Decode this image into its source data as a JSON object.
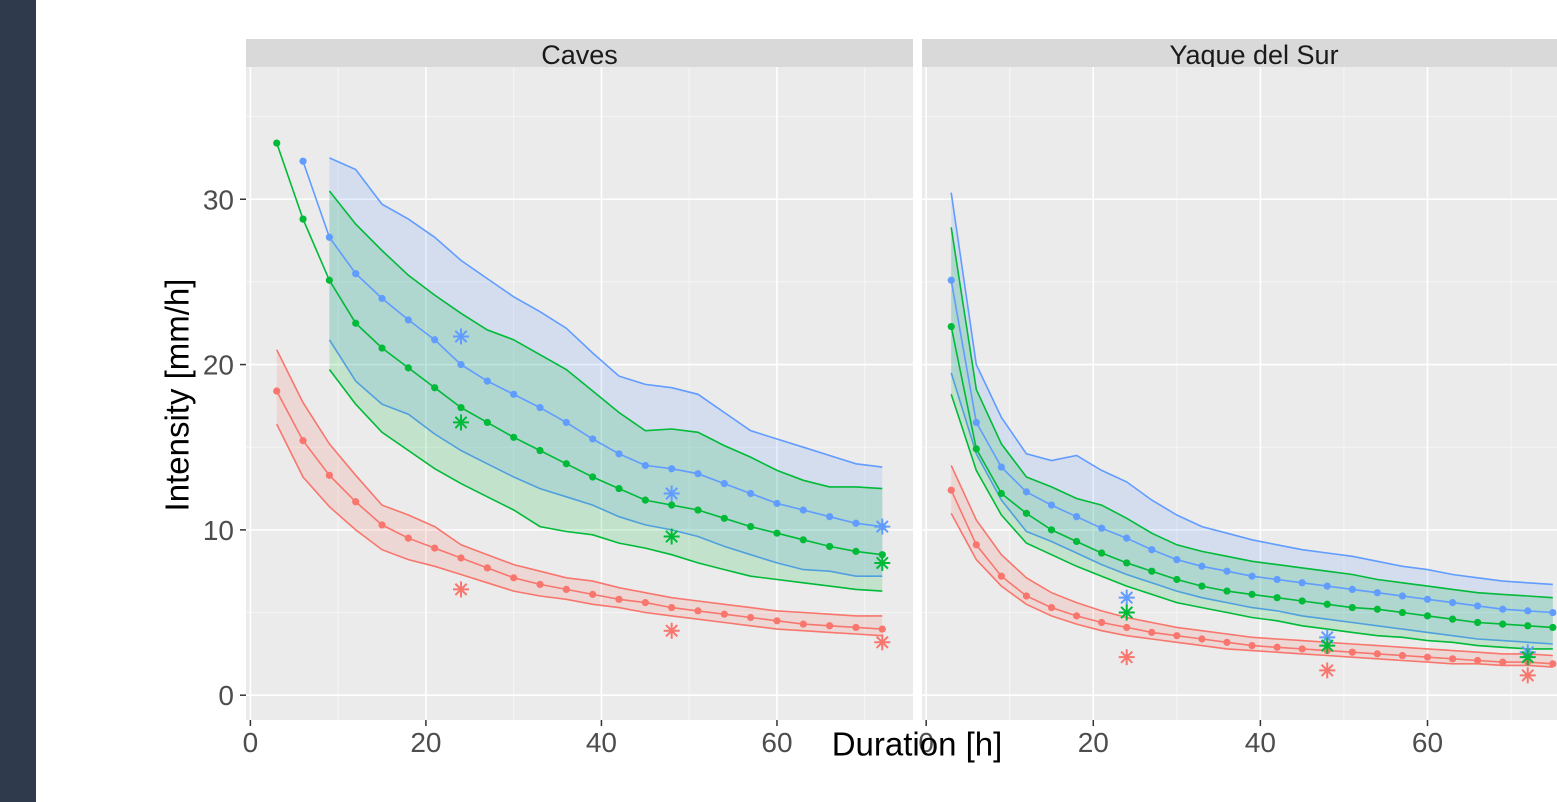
{
  "chart_data": {
    "type": "line",
    "xlabel": "Duration [h]",
    "ylabel": "Intensity [mm/h]",
    "xlim": [
      -0.5,
      75.5
    ],
    "ylim": [
      -1.5,
      38
    ],
    "xticks": [
      0,
      20,
      40,
      60
    ],
    "yticks": [
      0,
      10,
      20,
      30
    ],
    "grid": true,
    "legend": "none",
    "colors": {
      "red": "#f8766d",
      "green": "#00ba38",
      "blue": "#619cff",
      "panel_bg": "#ebebeb",
      "strip_bg": "#d9d9d9",
      "grid": "#ffffff"
    },
    "panels": [
      {
        "strip": "Caves",
        "bands": [
          {
            "color": "#619cff",
            "x": [
              9,
              12,
              15,
              18,
              21,
              24,
              27,
              30,
              33,
              36,
              39,
              42,
              45,
              48,
              51,
              54,
              57,
              60,
              63,
              66,
              69,
              72
            ],
            "upper": [
              32.5,
              31.8,
              29.7,
              28.8,
              27.7,
              26.3,
              25.2,
              24.1,
              23.2,
              22.2,
              20.7,
              19.3,
              18.8,
              18.6,
              18.2,
              17.1,
              16.0,
              15.5,
              15.0,
              14.5,
              14.0,
              13.8
            ],
            "lower": [
              21.5,
              19.0,
              17.6,
              17.0,
              15.8,
              14.8,
              14.0,
              13.2,
              12.5,
              12.0,
              11.5,
              10.8,
              10.3,
              10.0,
              9.6,
              9.0,
              8.5,
              8.0,
              7.6,
              7.5,
              7.2,
              7.2
            ]
          },
          {
            "color": "#00ba38",
            "x": [
              9,
              12,
              15,
              18,
              21,
              24,
              27,
              30,
              33,
              36,
              39,
              42,
              45,
              48,
              51,
              54,
              57,
              60,
              63,
              66,
              69,
              72
            ],
            "upper": [
              30.5,
              28.5,
              26.9,
              25.4,
              24.2,
              23.1,
              22.1,
              21.5,
              20.6,
              19.7,
              18.4,
              17.1,
              16.0,
              16.1,
              15.9,
              15.1,
              14.4,
              13.6,
              13.0,
              12.6,
              12.6,
              12.5
            ],
            "lower": [
              19.7,
              17.6,
              15.9,
              14.8,
              13.7,
              12.8,
              12.0,
              11.2,
              10.2,
              9.9,
              9.7,
              9.2,
              8.9,
              8.5,
              8.0,
              7.6,
              7.2,
              7.0,
              6.8,
              6.6,
              6.4,
              6.3
            ]
          },
          {
            "color": "#f8766d",
            "x": [
              3,
              6,
              9,
              12,
              15,
              18,
              21,
              24,
              27,
              30,
              33,
              36,
              39,
              42,
              45,
              48,
              51,
              54,
              57,
              60,
              63,
              66,
              69,
              72
            ],
            "upper": [
              20.9,
              17.7,
              15.2,
              13.3,
              11.5,
              10.9,
              10.2,
              9.1,
              8.5,
              7.9,
              7.5,
              7.1,
              6.9,
              6.5,
              6.2,
              5.9,
              5.7,
              5.5,
              5.3,
              5.1,
              5.0,
              4.9,
              4.8,
              4.8
            ],
            "lower": [
              16.4,
              13.2,
              11.4,
              10.0,
              8.8,
              8.2,
              7.8,
              7.3,
              6.8,
              6.3,
              6.0,
              5.8,
              5.5,
              5.3,
              5.0,
              4.8,
              4.6,
              4.4,
              4.2,
              4.0,
              3.9,
              3.8,
              3.7,
              3.6
            ]
          }
        ],
        "series": [
          {
            "color": "#619cff",
            "x": [
              6,
              9,
              12,
              15,
              18,
              21,
              24,
              27,
              30,
              33,
              36,
              39,
              42,
              45,
              48,
              51,
              54,
              57,
              60,
              63,
              66,
              69,
              72
            ],
            "y": [
              32.3,
              27.7,
              25.5,
              24.0,
              22.7,
              21.5,
              20.0,
              19.0,
              18.2,
              17.4,
              16.5,
              15.5,
              14.6,
              13.9,
              13.7,
              13.4,
              12.8,
              12.2,
              11.6,
              11.2,
              10.8,
              10.4,
              10.2
            ]
          },
          {
            "color": "#00ba38",
            "x": [
              3,
              6,
              9,
              12,
              15,
              18,
              21,
              24,
              27,
              30,
              33,
              36,
              39,
              42,
              45,
              48,
              51,
              54,
              57,
              60,
              63,
              66,
              69,
              72
            ],
            "y": [
              33.4,
              28.8,
              25.1,
              22.5,
              21.0,
              19.8,
              18.6,
              17.4,
              16.5,
              15.6,
              14.8,
              14.0,
              13.2,
              12.5,
              11.8,
              11.5,
              11.2,
              10.7,
              10.2,
              9.8,
              9.4,
              9.0,
              8.7,
              8.5
            ]
          },
          {
            "color": "#f8766d",
            "x": [
              3,
              6,
              9,
              12,
              15,
              18,
              21,
              24,
              27,
              30,
              33,
              36,
              39,
              42,
              45,
              48,
              51,
              54,
              57,
              60,
              63,
              66,
              69,
              72
            ],
            "y": [
              18.4,
              15.4,
              13.3,
              11.7,
              10.3,
              9.5,
              8.9,
              8.3,
              7.7,
              7.1,
              6.7,
              6.4,
              6.1,
              5.8,
              5.6,
              5.3,
              5.1,
              4.9,
              4.7,
              4.5,
              4.3,
              4.2,
              4.1,
              4.0
            ]
          }
        ],
        "stars": [
          {
            "color": "#619cff",
            "x": 24,
            "y": 21.7
          },
          {
            "color": "#619cff",
            "x": 48,
            "y": 12.2
          },
          {
            "color": "#619cff",
            "x": 72,
            "y": 10.2
          },
          {
            "color": "#00ba38",
            "x": 24,
            "y": 16.5
          },
          {
            "color": "#00ba38",
            "x": 48,
            "y": 9.6
          },
          {
            "color": "#00ba38",
            "x": 72,
            "y": 8.0
          },
          {
            "color": "#f8766d",
            "x": 24,
            "y": 6.4
          },
          {
            "color": "#f8766d",
            "x": 48,
            "y": 3.9
          },
          {
            "color": "#f8766d",
            "x": 72,
            "y": 3.2
          }
        ]
      },
      {
        "strip": "Yaque del Sur",
        "bands": [
          {
            "color": "#619cff",
            "x": [
              3,
              6,
              9,
              12,
              15,
              18,
              21,
              24,
              27,
              30,
              33,
              36,
              39,
              42,
              45,
              48,
              51,
              54,
              57,
              60,
              63,
              66,
              69,
              72,
              75
            ],
            "upper": [
              30.4,
              20.0,
              16.8,
              14.6,
              14.2,
              14.5,
              13.6,
              12.9,
              11.8,
              10.9,
              10.2,
              9.8,
              9.4,
              9.1,
              8.8,
              8.6,
              8.4,
              8.1,
              7.8,
              7.6,
              7.3,
              7.1,
              6.9,
              6.8,
              6.7
            ],
            "lower": [
              19.5,
              14.6,
              11.8,
              9.9,
              9.3,
              8.6,
              7.9,
              7.3,
              6.8,
              6.3,
              5.9,
              5.6,
              5.3,
              5.1,
              4.8,
              4.6,
              4.4,
              4.2,
              4.0,
              3.8,
              3.6,
              3.4,
              3.3,
              3.2,
              3.1
            ]
          },
          {
            "color": "#00ba38",
            "x": [
              3,
              6,
              9,
              12,
              15,
              18,
              21,
              24,
              27,
              30,
              33,
              36,
              39,
              42,
              45,
              48,
              51,
              54,
              57,
              60,
              63,
              66,
              69,
              72,
              75
            ],
            "upper": [
              28.3,
              18.5,
              15.2,
              13.2,
              12.6,
              11.9,
              11.5,
              10.7,
              9.8,
              9.1,
              8.7,
              8.4,
              8.1,
              7.9,
              7.7,
              7.5,
              7.3,
              7.0,
              6.8,
              6.6,
              6.4,
              6.2,
              6.1,
              6.0,
              5.9
            ],
            "lower": [
              18.2,
              13.6,
              10.9,
              9.2,
              8.5,
              7.8,
              7.2,
              6.6,
              6.1,
              5.6,
              5.3,
              5.0,
              4.7,
              4.5,
              4.2,
              4.0,
              3.8,
              3.6,
              3.5,
              3.3,
              3.2,
              3.0,
              2.9,
              2.8,
              2.8
            ]
          },
          {
            "color": "#f8766d",
            "x": [
              3,
              6,
              9,
              12,
              15,
              18,
              21,
              24,
              27,
              30,
              33,
              36,
              39,
              42,
              45,
              48,
              51,
              54,
              57,
              60,
              63,
              66,
              69,
              72,
              75
            ],
            "upper": [
              13.9,
              10.6,
              8.5,
              7.1,
              6.2,
              5.6,
              5.1,
              4.7,
              4.4,
              4.1,
              3.9,
              3.7,
              3.5,
              3.4,
              3.3,
              3.2,
              3.1,
              3.0,
              2.9,
              2.8,
              2.7,
              2.6,
              2.5,
              2.5,
              2.4
            ],
            "lower": [
              11.0,
              8.2,
              6.6,
              5.5,
              4.8,
              4.3,
              3.9,
              3.6,
              3.4,
              3.2,
              3.0,
              2.8,
              2.7,
              2.6,
              2.5,
              2.4,
              2.3,
              2.2,
              2.1,
              2.0,
              1.9,
              1.9,
              1.8,
              1.8,
              1.7
            ]
          }
        ],
        "series": [
          {
            "color": "#619cff",
            "x": [
              3,
              6,
              9,
              12,
              15,
              18,
              21,
              24,
              27,
              30,
              33,
              36,
              39,
              42,
              45,
              48,
              51,
              54,
              57,
              60,
              63,
              66,
              69,
              72,
              75
            ],
            "y": [
              25.1,
              16.5,
              13.8,
              12.3,
              11.5,
              10.8,
              10.1,
              9.5,
              8.8,
              8.2,
              7.8,
              7.5,
              7.2,
              7.0,
              6.8,
              6.6,
              6.4,
              6.2,
              6.0,
              5.8,
              5.6,
              5.4,
              5.2,
              5.1,
              5.0
            ]
          },
          {
            "color": "#00ba38",
            "x": [
              3,
              6,
              9,
              12,
              15,
              18,
              21,
              24,
              27,
              30,
              33,
              36,
              39,
              42,
              45,
              48,
              51,
              54,
              57,
              60,
              63,
              66,
              69,
              72,
              75
            ],
            "y": [
              22.3,
              14.9,
              12.2,
              11.0,
              10.0,
              9.3,
              8.6,
              8.0,
              7.5,
              7.0,
              6.6,
              6.3,
              6.1,
              5.9,
              5.7,
              5.5,
              5.3,
              5.2,
              5.0,
              4.8,
              4.6,
              4.4,
              4.3,
              4.2,
              4.1
            ]
          },
          {
            "color": "#f8766d",
            "x": [
              3,
              6,
              9,
              12,
              15,
              18,
              21,
              24,
              27,
              30,
              33,
              36,
              39,
              42,
              45,
              48,
              51,
              54,
              57,
              60,
              63,
              66,
              69,
              72,
              75
            ],
            "y": [
              12.4,
              9.1,
              7.2,
              6.0,
              5.3,
              4.8,
              4.4,
              4.1,
              3.8,
              3.6,
              3.4,
              3.2,
              3.0,
              2.9,
              2.8,
              2.7,
              2.6,
              2.5,
              2.4,
              2.3,
              2.2,
              2.1,
              2.0,
              2.0,
              1.9
            ]
          }
        ],
        "stars": [
          {
            "color": "#619cff",
            "x": 24,
            "y": 5.9
          },
          {
            "color": "#619cff",
            "x": 48,
            "y": 3.5
          },
          {
            "color": "#619cff",
            "x": 72,
            "y": 2.6
          },
          {
            "color": "#00ba38",
            "x": 24,
            "y": 5.0
          },
          {
            "color": "#00ba38",
            "x": 48,
            "y": 3.0
          },
          {
            "color": "#00ba38",
            "x": 72,
            "y": 2.3
          },
          {
            "color": "#f8766d",
            "x": 24,
            "y": 2.3
          },
          {
            "color": "#f8766d",
            "x": 48,
            "y": 1.5
          },
          {
            "color": "#f8766d",
            "x": 72,
            "y": 1.2
          }
        ]
      }
    ]
  }
}
